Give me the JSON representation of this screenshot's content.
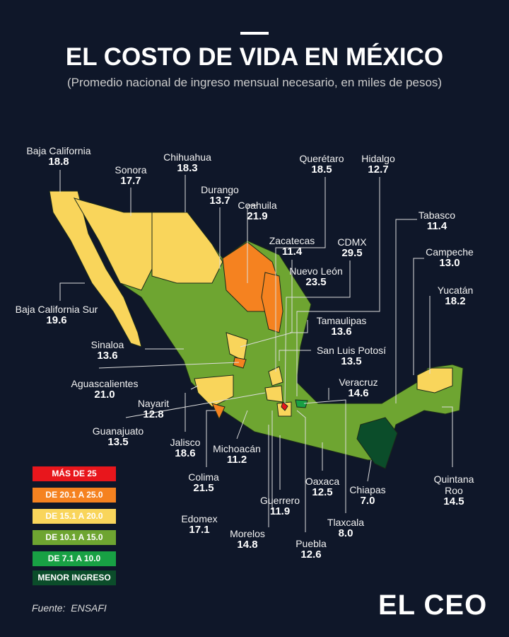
{
  "header": {
    "title": "EL COSTO DE VIDA EN MÉXICO",
    "subtitle": "(Promedio nacional de ingreso mensual necesario, en miles de pesos)"
  },
  "states": [
    {
      "name": "Baja California",
      "value": "18.8"
    },
    {
      "name": "Sonora",
      "value": "17.7"
    },
    {
      "name": "Chihuahua",
      "value": "18.3"
    },
    {
      "name": "Durango",
      "value": "13.7"
    },
    {
      "name": "Coahuila",
      "value": "21.9"
    },
    {
      "name": "Querétaro",
      "value": "18.5"
    },
    {
      "name": "Hidalgo",
      "value": "12.7"
    },
    {
      "name": "Zacatecas",
      "value": "11.4"
    },
    {
      "name": "CDMX",
      "value": "29.5"
    },
    {
      "name": "Nuevo León",
      "value": "23.5"
    },
    {
      "name": "Tabasco",
      "value": "11.4"
    },
    {
      "name": "Campeche",
      "value": "13.0"
    },
    {
      "name": "Yucatán",
      "value": "18.2"
    },
    {
      "name": "Baja California Sur",
      "value": "19.6"
    },
    {
      "name": "Sinaloa",
      "value": "13.6"
    },
    {
      "name": "Tamaulipas",
      "value": "13.6"
    },
    {
      "name": "San Luis Potosí",
      "value": "13.5"
    },
    {
      "name": "Aguascalientes",
      "value": "21.0"
    },
    {
      "name": "Veracruz",
      "value": "14.6"
    },
    {
      "name": "Nayarit",
      "value": "12.8"
    },
    {
      "name": "Guanajuato",
      "value": "13.5"
    },
    {
      "name": "Jalisco",
      "value": "18.6"
    },
    {
      "name": "Michoacán",
      "value": "11.2"
    },
    {
      "name": "Colima",
      "value": "21.5"
    },
    {
      "name": "Oaxaca",
      "value": "12.5"
    },
    {
      "name": "Chiapas",
      "value": "7.0"
    },
    {
      "name": "Quintana Roo",
      "value": "14.5"
    },
    {
      "name": "Guerrero",
      "value": "11.9"
    },
    {
      "name": "Edomex",
      "value": "17.1"
    },
    {
      "name": "Tlaxcala",
      "value": "8.0"
    },
    {
      "name": "Morelos",
      "value": "14.8"
    },
    {
      "name": "Puebla",
      "value": "12.6"
    }
  ],
  "legend": [
    "MÁS DE 25",
    "DE 20.1 A 25.0",
    "DE 15.1 A 20.0",
    "DE 10.1 A 15.0",
    "DE 7.1 A 10.0",
    "MENOR INGRESO"
  ],
  "source": "Fuente:  ENSAFI",
  "logo": "EL CEO"
}
